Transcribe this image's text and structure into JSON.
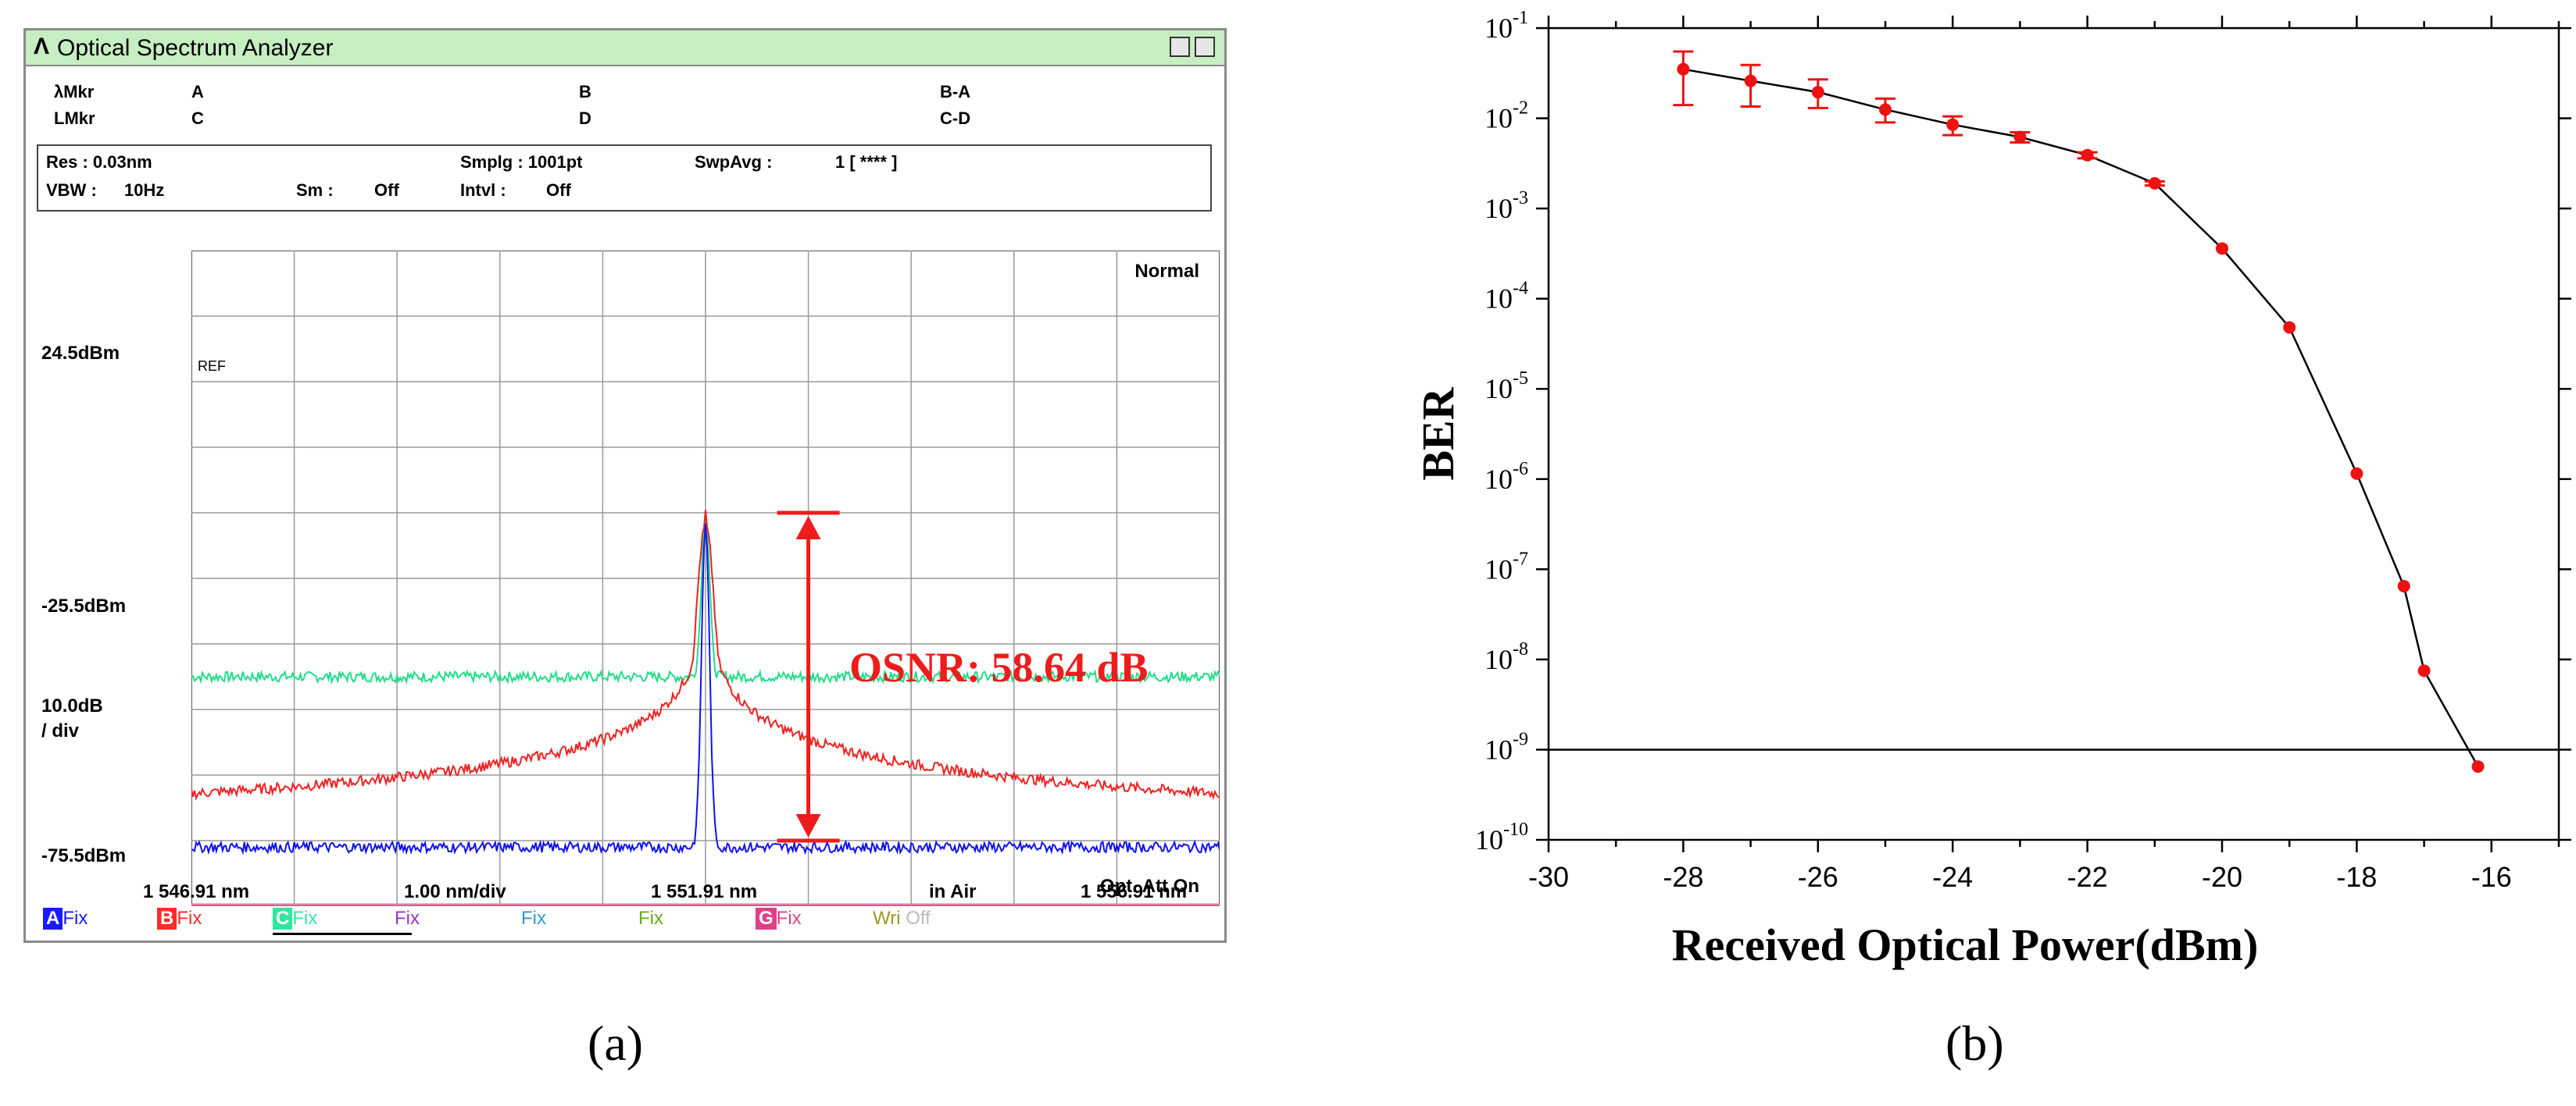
{
  "panel_a": {
    "caption": "(a)",
    "window_title": "Optical Spectrum Analyzer",
    "logo_glyph": "Λ",
    "markers": {
      "lambda_label": "λMkr",
      "l_label": "LMkr",
      "a": "A",
      "b": "B",
      "ba": "B-A",
      "c": "C",
      "d": "D",
      "cd": "C-D"
    },
    "settings": {
      "res": "Res :  0.03nm",
      "vbw_label": "VBW :",
      "vbw_value": "10Hz",
      "sm_label": "Sm :",
      "sm_value": "Off",
      "smplg": "Smplg :   1001pt",
      "intvl_label": "Intvl :",
      "intvl_value": "Off",
      "swpavg_label": "SwpAvg :",
      "swpavg_value": "1 [    ****  ]"
    },
    "y_labels": {
      "top": "24.5dBm",
      "mid": "-25.5dBm",
      "scale_1": "10.0dB",
      "scale_2": "/ div",
      "bottom": "-75.5dBm"
    },
    "x_labels": {
      "left": "1 546.91 nm",
      "div": "1.00 nm/div",
      "center": "1 551.91 nm",
      "medium": "in Air",
      "right": "1 556.91 nm"
    },
    "plot_text": {
      "mode": "Normal",
      "ref": "REF",
      "opt_att": "Opt. Att On",
      "osnr": "OSNR: 58.64 dB"
    },
    "traces": [
      {
        "letter": "A",
        "state": "Fix",
        "color": "#1a1aff"
      },
      {
        "letter": "B",
        "state": "Fix",
        "color": "#ff2a2a"
      },
      {
        "letter": "C",
        "state": "Fix",
        "color": "#33e6a0"
      },
      {
        "letter": "",
        "state": "Fix",
        "color": "#9933cc"
      },
      {
        "letter": "",
        "state": "Fix",
        "color": "#3399cc"
      },
      {
        "letter": "",
        "state": "Fix",
        "color": "#66aa22"
      },
      {
        "letter": "G",
        "state": "Fix",
        "color": "#e0408a"
      },
      {
        "letter": "",
        "state": "Wri",
        "state2": "Off",
        "color": "#999922"
      }
    ],
    "chart_data": {
      "type": "line",
      "x_unit": "nm",
      "xlim": [
        1546.91,
        1556.91
      ],
      "ylim": [
        -75.5,
        24.5
      ],
      "y_unit": "dBm",
      "series": [
        {
          "color": "#22dd88",
          "noise_floor_dbm": -40.5,
          "peak_dbm": -15.5,
          "peak_nm": 1551.91
        },
        {
          "color": "#ee2222",
          "noise_floor_dbm": -65.5,
          "peak_dbm": -15.5,
          "peak_nm": 1551.91
        },
        {
          "color": "#1111ee",
          "noise_floor_dbm": -66.5,
          "peak_dbm": -17.0,
          "peak_nm": 1551.91
        }
      ],
      "annotation": {
        "text": "OSNR: 58.64 dB",
        "top_dbm": -15.5,
        "bottom_dbm": -65.5,
        "x_nm": 1552.91
      }
    }
  },
  "panel_b": {
    "caption": "(b)",
    "chart_data": {
      "type": "scatter",
      "xlabel": "Received Optical Power(dBm)",
      "ylabel": "BER",
      "xlim": [
        -30,
        -15
      ],
      "ylim_log10": [
        -10,
        -1
      ],
      "y_scale": "log",
      "x_ticks": [
        -30,
        -28,
        -26,
        -24,
        -22,
        -20,
        -18,
        -16
      ],
      "y_tick_exponents": [
        -1,
        -2,
        -3,
        -4,
        -5,
        -6,
        -7,
        -8,
        -9,
        -10
      ],
      "reference_line_ber": 1e-09,
      "points": [
        {
          "x": -28.0,
          "y": 0.035,
          "err_lo": 0.014,
          "err_hi": 0.055
        },
        {
          "x": -27.0,
          "y": 0.026,
          "err_lo": 0.0135,
          "err_hi": 0.039
        },
        {
          "x": -26.0,
          "y": 0.0195,
          "err_lo": 0.013,
          "err_hi": 0.027
        },
        {
          "x": -25.0,
          "y": 0.0125,
          "err_lo": 0.009,
          "err_hi": 0.0165
        },
        {
          "x": -24.0,
          "y": 0.0085,
          "err_lo": 0.0065,
          "err_hi": 0.0105
        },
        {
          "x": -23.0,
          "y": 0.0062,
          "err_lo": 0.0054,
          "err_hi": 0.007
        },
        {
          "x": -22.0,
          "y": 0.0039,
          "err_lo": 0.0036,
          "err_hi": 0.0042
        },
        {
          "x": -21.0,
          "y": 0.0019,
          "err_lo": 0.0018,
          "err_hi": 0.002
        },
        {
          "x": -20.0,
          "y": 0.00036
        },
        {
          "x": -19.0,
          "y": 4.8e-05
        },
        {
          "x": -18.0,
          "y": 1.15e-06
        },
        {
          "x": -17.3,
          "y": 6.5e-08
        },
        {
          "x": -17.0,
          "y": 7.5e-09
        },
        {
          "x": -16.2,
          "y": 6.5e-10
        }
      ],
      "marker_color": "#ee1111",
      "line_color": "#000000"
    }
  }
}
